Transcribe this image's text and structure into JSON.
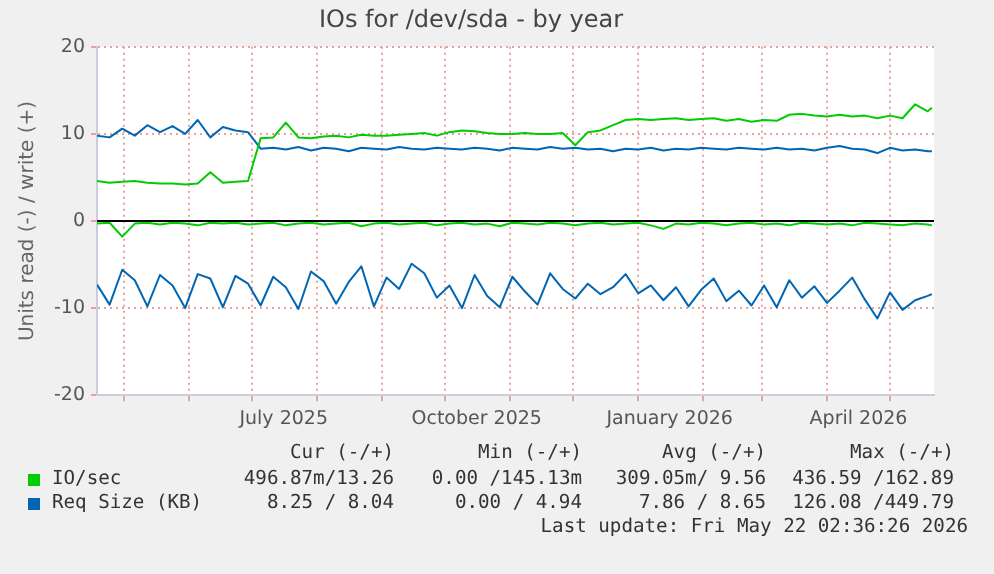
{
  "chart_data": {
    "type": "line",
    "title": "IOs for /dev/sda - by year",
    "ylabel": "Units read (-) / write (+)",
    "x": [
      "2025-04-18",
      "2025-04-24",
      "2025-04-30",
      "2025-05-06",
      "2025-05-12",
      "2025-05-18",
      "2025-05-24",
      "2025-05-30",
      "2025-06-05",
      "2025-06-11",
      "2025-06-17",
      "2025-06-23",
      "2025-06-29",
      "2025-07-05",
      "2025-07-11",
      "2025-07-17",
      "2025-07-23",
      "2025-07-29",
      "2025-08-04",
      "2025-08-10",
      "2025-08-16",
      "2025-08-22",
      "2025-08-28",
      "2025-09-03",
      "2025-09-09",
      "2025-09-15",
      "2025-09-21",
      "2025-09-27",
      "2025-10-03",
      "2025-10-09",
      "2025-10-15",
      "2025-10-21",
      "2025-10-27",
      "2025-11-02",
      "2025-11-08",
      "2025-11-14",
      "2025-11-20",
      "2025-11-26",
      "2025-12-02",
      "2025-12-08",
      "2025-12-14",
      "2025-12-20",
      "2025-12-26",
      "2026-01-01",
      "2026-01-07",
      "2026-01-13",
      "2026-01-19",
      "2026-01-25",
      "2026-01-31",
      "2026-02-06",
      "2026-02-12",
      "2026-02-18",
      "2026-02-24",
      "2026-03-02",
      "2026-03-08",
      "2026-03-14",
      "2026-03-20",
      "2026-03-26",
      "2026-04-01",
      "2026-04-07",
      "2026-04-13",
      "2026-04-19",
      "2026-04-25",
      "2026-05-01",
      "2026-05-07",
      "2026-05-13",
      "2026-05-19",
      "2026-05-21"
    ],
    "series": [
      {
        "color": "#00cc00",
        "values": [
          -0.3,
          -0.2,
          -1.8,
          -0.3,
          -0.2,
          -0.4,
          -0.2,
          -0.3,
          -0.5,
          -0.2,
          -0.3,
          -0.2,
          -0.4,
          -0.3,
          -0.2,
          -0.5,
          -0.3,
          -0.2,
          -0.4,
          -0.3,
          -0.2,
          -0.6,
          -0.3,
          -0.2,
          -0.4,
          -0.3,
          -0.2,
          -0.5,
          -0.3,
          -0.2,
          -0.4,
          -0.3,
          -0.6,
          -0.2,
          -0.3,
          -0.4,
          -0.2,
          -0.3,
          -0.5,
          -0.3,
          -0.2,
          -0.4,
          -0.3,
          -0.2,
          -0.5,
          -0.9,
          -0.3,
          -0.4,
          -0.2,
          -0.3,
          -0.5,
          -0.3,
          -0.2,
          -0.4,
          -0.3,
          -0.5,
          -0.2,
          -0.3,
          -0.4,
          -0.3,
          -0.5,
          -0.2,
          -0.3,
          -0.4,
          -0.5,
          -0.3,
          -0.4,
          -0.5
        ]
      },
      {
        "name": "IO/sec",
        "color": "#00cc00",
        "values": [
          4.6,
          4.4,
          4.5,
          4.6,
          4.4,
          4.3,
          4.3,
          4.2,
          4.3,
          5.6,
          4.4,
          4.5,
          4.6,
          9.5,
          9.6,
          11.3,
          9.6,
          9.5,
          9.7,
          9.8,
          9.6,
          9.9,
          9.8,
          9.8,
          9.9,
          10.0,
          10.1,
          9.8,
          10.2,
          10.4,
          10.3,
          10.1,
          10.0,
          10.0,
          10.1,
          10.0,
          10.0,
          10.1,
          8.7,
          10.2,
          10.4,
          11.0,
          11.6,
          11.7,
          11.6,
          11.7,
          11.8,
          11.6,
          11.7,
          11.8,
          11.5,
          11.7,
          11.4,
          11.6,
          11.5,
          12.2,
          12.3,
          12.1,
          12.0,
          12.2,
          12.0,
          12.1,
          11.8,
          12.1,
          11.8,
          13.4,
          12.6,
          13.0
        ]
      },
      {
        "color": "#0066b3",
        "values": [
          -7.3,
          -9.6,
          -5.6,
          -6.8,
          -9.8,
          -6.2,
          -7.4,
          -10.0,
          -6.1,
          -6.6,
          -9.9,
          -6.3,
          -7.2,
          -9.7,
          -6.4,
          -7.6,
          -10.1,
          -5.8,
          -6.9,
          -9.5,
          -7.0,
          -5.2,
          -9.8,
          -6.5,
          -7.8,
          -4.9,
          -6.0,
          -8.8,
          -7.4,
          -10.0,
          -6.2,
          -8.6,
          -9.9,
          -6.4,
          -8.1,
          -9.6,
          -6.0,
          -7.8,
          -8.9,
          -7.2,
          -8.4,
          -7.6,
          -6.1,
          -8.3,
          -7.4,
          -9.1,
          -7.6,
          -9.8,
          -7.9,
          -6.6,
          -9.2,
          -8.0,
          -9.7,
          -7.4,
          -9.9,
          -6.8,
          -8.8,
          -7.5,
          -9.4,
          -8.0,
          -6.5,
          -9.0,
          -11.2,
          -8.2,
          -10.2,
          -9.1,
          -8.6,
          -8.4
        ]
      },
      {
        "name": "Req Size (KB)",
        "color": "#0066b3",
        "values": [
          9.8,
          9.6,
          10.6,
          9.8,
          11.0,
          10.2,
          10.9,
          10.0,
          11.6,
          9.6,
          10.8,
          10.4,
          10.2,
          8.3,
          8.4,
          8.2,
          8.5,
          8.1,
          8.4,
          8.3,
          8.0,
          8.4,
          8.3,
          8.2,
          8.5,
          8.3,
          8.2,
          8.4,
          8.3,
          8.2,
          8.4,
          8.3,
          8.1,
          8.4,
          8.3,
          8.2,
          8.5,
          8.3,
          8.4,
          8.2,
          8.3,
          8.0,
          8.3,
          8.2,
          8.4,
          8.1,
          8.3,
          8.2,
          8.4,
          8.3,
          8.2,
          8.4,
          8.3,
          8.2,
          8.4,
          8.2,
          8.3,
          8.1,
          8.4,
          8.6,
          8.3,
          8.2,
          7.8,
          8.4,
          8.1,
          8.2,
          8.0,
          8.0
        ]
      }
    ],
    "xlim": [
      "2025-04-18",
      "2026-05-22"
    ],
    "xticks": [
      {
        "value": "2025-05-01",
        "label": null
      },
      {
        "value": "2025-06-01",
        "label": null
      },
      {
        "value": "2025-07-01",
        "label": null
      },
      {
        "value": "2025-07-16",
        "label": "July 2025"
      },
      {
        "value": "2025-08-01",
        "label": null
      },
      {
        "value": "2025-09-01",
        "label": null
      },
      {
        "value": "2025-10-01",
        "label": null
      },
      {
        "value": "2025-10-16",
        "label": "October 2025"
      },
      {
        "value": "2025-11-01",
        "label": null
      },
      {
        "value": "2025-12-01",
        "label": null
      },
      {
        "value": "2026-01-01",
        "label": null
      },
      {
        "value": "2026-01-16",
        "label": "January 2026"
      },
      {
        "value": "2026-02-01",
        "label": null
      },
      {
        "value": "2026-03-01",
        "label": null
      },
      {
        "value": "2026-04-01",
        "label": null
      },
      {
        "value": "2026-04-16",
        "label": "April 2026"
      },
      {
        "value": "2026-05-01",
        "label": null
      }
    ],
    "ylim": [
      -20,
      20
    ],
    "yticks": [
      -20,
      -10,
      0,
      10,
      20
    ],
    "ref_lines": [
      {
        "axis": "y",
        "value": 0,
        "color": "#000000"
      }
    ],
    "grid": true,
    "legend": "bottom",
    "marker": "none",
    "line_style": "solid",
    "annotations": [
      "Cur (-/+)",
      "Min (-/+)",
      "Avg (-/+)",
      "Max (-/+)",
      "496.87m/13.26",
      "0.00 /145.13m",
      "309.05m/ 9.56",
      "436.59 /162.89",
      "8.25 / 8.04",
      "0.00 / 4.94",
      "7.86 / 8.65",
      "126.08 /449.79",
      "Last update: Fri May 22 02:36:26 2026"
    ]
  }
}
